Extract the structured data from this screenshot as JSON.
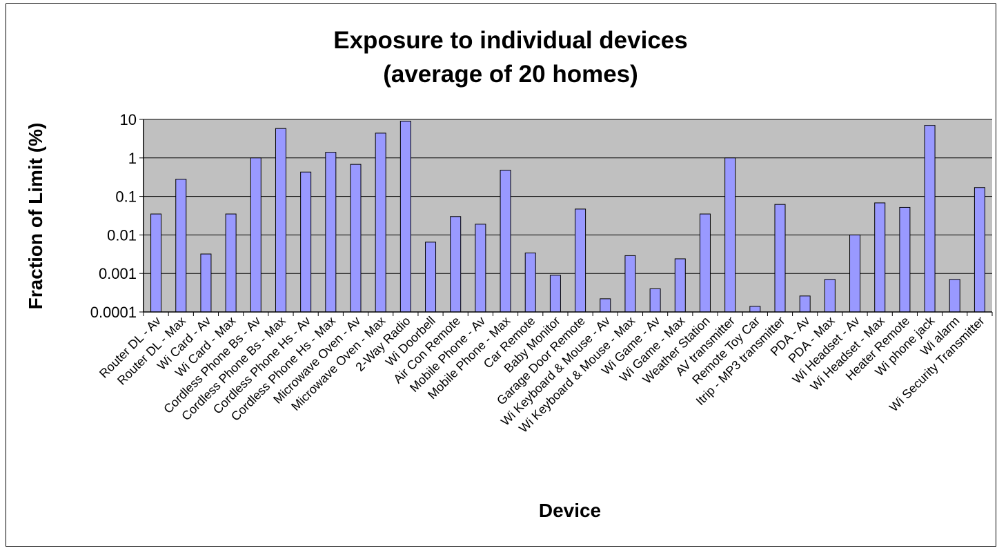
{
  "chart_data": {
    "type": "bar",
    "title": "Exposure to individual devices",
    "subtitle": "(average of 20 homes)",
    "xlabel": "Device",
    "ylabel": "Fraction of Limit (%)",
    "yscale": "log",
    "ylim": [
      0.0001,
      10
    ],
    "yticks": [
      "10",
      "1",
      "0.1",
      "0.01",
      "0.001",
      "0.0001"
    ],
    "grid": true,
    "colors": {
      "bar": "#9999ff",
      "plot_bg": "#c0c0c0",
      "bar_edge": "#000000"
    },
    "categories": [
      "Router DL - Av",
      "Router DL - Max",
      "Wi Card - Av",
      "Wi Card - Max",
      "Cordless Phone Bs - Av",
      "Cordless Phone Bs - Max",
      "Cordless Phone Hs - Av",
      "Cordless Phone Hs - Max",
      "Microwave Oven - Av",
      "Microwave Oven - Max",
      "2-Way Radio",
      "Wi Doorbell",
      "Air Con Remote",
      "Mobile Phone - Av",
      "Mobile Phone - Max",
      "Car Remote",
      "Baby Monitor",
      "Garage Door Remote",
      "Wi Keyboard & Mouse - Av",
      "Wi Keyboard & Mouse - Max",
      "Wi Game - Av",
      "Wi Game - Max",
      "Weather Station",
      "AV transmitter",
      "Remote Toy Car",
      "Itrip - MP3 transmitter",
      "PDA - Av",
      "PDA - Max",
      "Wi Headset - Av",
      "Wi Headset - Max",
      "Heater Remote",
      "Wi phone jack",
      "Wi alarm",
      "Wi Security Transmitter"
    ],
    "values": [
      0.035,
      0.28,
      0.0032,
      0.035,
      1.0,
      5.8,
      0.43,
      1.4,
      0.68,
      4.4,
      9.0,
      0.0065,
      0.03,
      0.019,
      0.48,
      0.0034,
      0.0009,
      0.047,
      0.00022,
      0.0029,
      0.0004,
      0.0024,
      0.035,
      1.0,
      0.00014,
      0.062,
      0.00026,
      0.0007,
      0.01,
      0.068,
      0.052,
      7.0,
      0.0007,
      0.17
    ]
  }
}
